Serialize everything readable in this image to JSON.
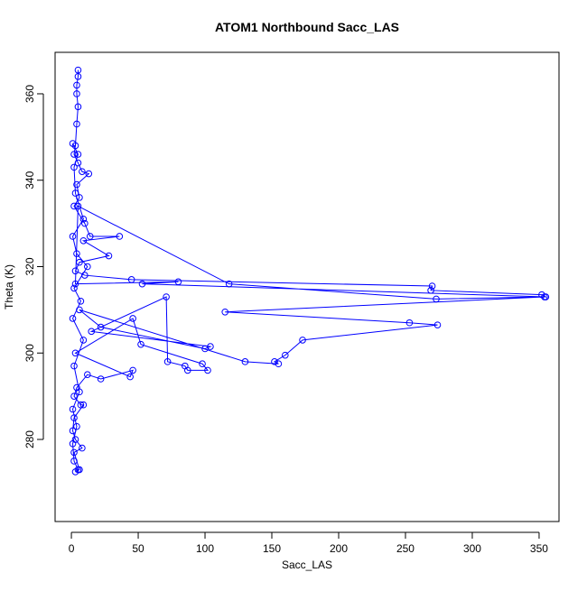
{
  "chart_data": {
    "type": "line",
    "title": "ATOM1 Northbound Sacc_LAS",
    "x_label": "Sacc_LAS",
    "y_label": "Theta (K)",
    "xlim": [
      -12.2,
      364.9
    ],
    "ylim": [
      261,
      369.6
    ],
    "xticks": [
      0,
      50,
      100,
      150,
      200,
      250,
      300,
      350
    ],
    "yticks": [
      280,
      300,
      320,
      340,
      360
    ],
    "marker": "circle-open",
    "series": [
      {
        "color": "#0000ff",
        "x": [
          5,
          5,
          4,
          4,
          5,
          4,
          3,
          2,
          5,
          8,
          13,
          4,
          6,
          2,
          10,
          14,
          36,
          9,
          28,
          6,
          3,
          10,
          45,
          270,
          269,
          352,
          355,
          273,
          118,
          5,
          3,
          80,
          53,
          354,
          115,
          253,
          274,
          173,
          160,
          152,
          155,
          130,
          6,
          22,
          100,
          104,
          15,
          71,
          72,
          85,
          87,
          102,
          98,
          52,
          46,
          3,
          44,
          46,
          22,
          12,
          4,
          2,
          7,
          9,
          2,
          1,
          3,
          8,
          2,
          6,
          3,
          5,
          2,
          1,
          4,
          1,
          6,
          2,
          9,
          1,
          7,
          2,
          12,
          4,
          1,
          9,
          3,
          2,
          5,
          1
        ],
        "values": [
          365.5,
          364,
          362,
          360,
          357,
          353,
          348,
          346,
          344,
          342,
          341.5,
          339,
          336,
          334,
          330,
          327,
          327,
          326,
          322.5,
          321,
          319,
          318,
          317,
          315.5,
          314.5,
          313.5,
          313,
          312.5,
          316,
          334,
          316,
          316.5,
          316,
          313,
          309.5,
          307,
          306.5,
          303,
          299.5,
          298,
          297.5,
          298,
          310,
          306,
          301,
          301.5,
          305,
          313,
          298,
          297,
          296,
          296,
          297.5,
          302,
          308,
          300,
          294.5,
          296,
          294,
          295,
          292,
          290,
          288,
          288,
          285,
          282,
          280,
          278,
          277,
          273,
          272.5,
          273,
          275,
          279,
          283,
          287,
          291,
          297,
          303,
          308,
          312,
          315,
          320,
          323,
          327,
          331,
          337,
          343,
          346,
          348.5
        ]
      }
    ]
  }
}
